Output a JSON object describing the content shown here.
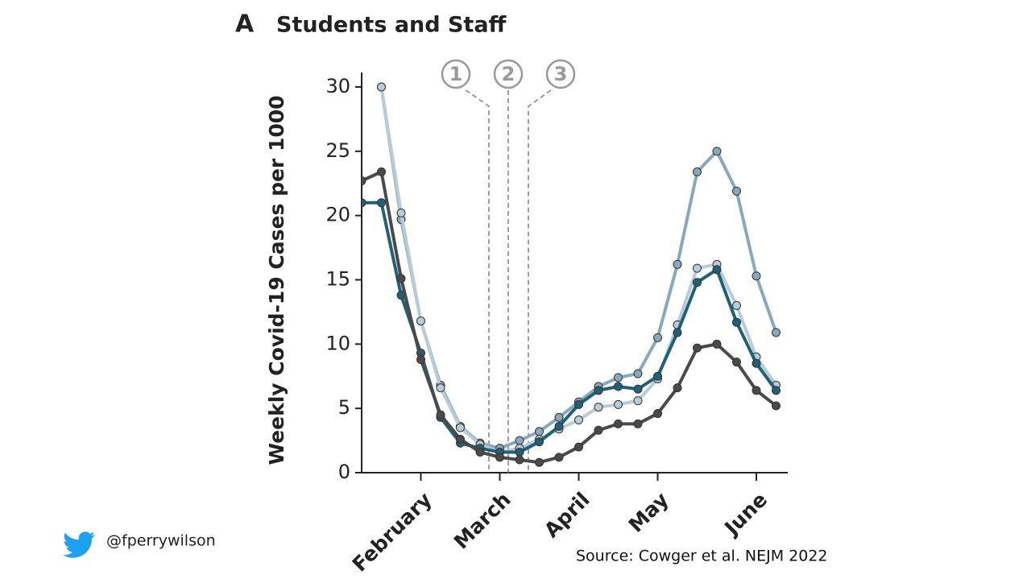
{
  "chart_data": {
    "type": "line",
    "panel": "A",
    "title": "Students and Staff",
    "y_label": "Weekly Covid-19 Cases per 1000",
    "categories": [
      null,
      null,
      null,
      "February",
      null,
      null,
      null,
      "March",
      null,
      null,
      null,
      "April",
      null,
      null,
      null,
      "May",
      null,
      null,
      null,
      null,
      "June",
      null
    ],
    "series": [
      {
        "color": "#88a9bb",
        "values": [
          null,
          30,
          19.7,
          11.8,
          6.8,
          3.6,
          2.3,
          1.9,
          2.5,
          3.2,
          4.3,
          5.5,
          6.7,
          7.4,
          7.7,
          10.5,
          16.2,
          23.4,
          25.0,
          21.9,
          15.3,
          10.9
        ]
      },
      {
        "color": "#b8cbd6",
        "values": [
          null,
          30,
          20.2,
          11.8,
          6.6,
          3.5,
          2.2,
          1.6,
          1.9,
          2.6,
          3.4,
          4.1,
          5.1,
          5.3,
          5.6,
          7.3,
          11.5,
          15.9,
          16.2,
          13.0,
          9.0,
          6.8
        ]
      },
      {
        "color": "#1f6278",
        "values": [
          21,
          21,
          13.8,
          9.3,
          4.3,
          2.3,
          1.9,
          1.6,
          1.6,
          2.4,
          3.6,
          5.3,
          6.4,
          6.7,
          6.5,
          7.5,
          10.9,
          14.8,
          15.8,
          11.7,
          8.5,
          6.4
        ]
      },
      {
        "color": "#4a4a4a",
        "values": [
          22.7,
          23.4,
          15.1,
          8.8,
          4.5,
          2.6,
          1.6,
          1.2,
          1.0,
          0.8,
          1.2,
          2.0,
          3.3,
          3.8,
          3.8,
          4.6,
          6.6,
          9.7,
          10.0,
          8.6,
          6.4,
          5.2
        ]
      }
    ],
    "ylim": [
      0,
      30
    ],
    "yticks": [
      0,
      5,
      10,
      15,
      20,
      25,
      30
    ],
    "annotations": [
      "1",
      "2",
      "3"
    ],
    "handle": "@fperrywilson",
    "source": "Source: Cowger et al. NEJM 2022"
  }
}
